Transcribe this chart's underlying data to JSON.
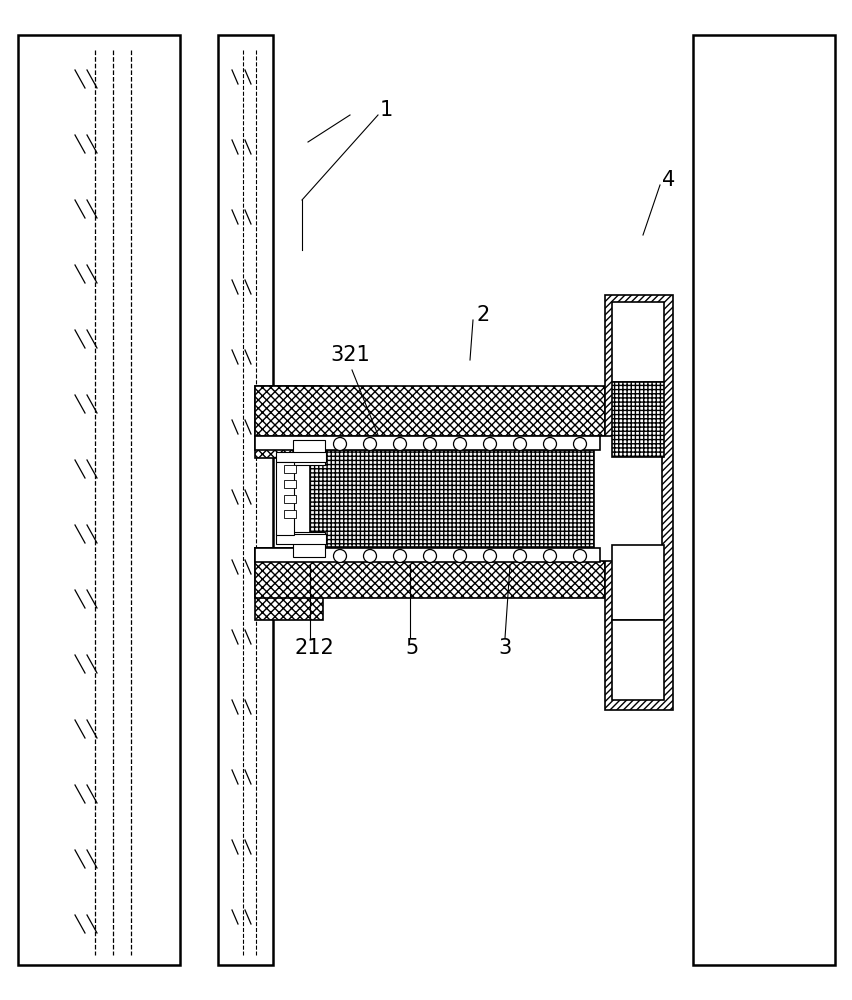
{
  "bg_color": "#ffffff",
  "figsize": [
    8.52,
    10.0
  ],
  "dpi": 100,
  "lw_thick": 1.8,
  "lw_med": 1.2,
  "lw_thin": 0.8
}
